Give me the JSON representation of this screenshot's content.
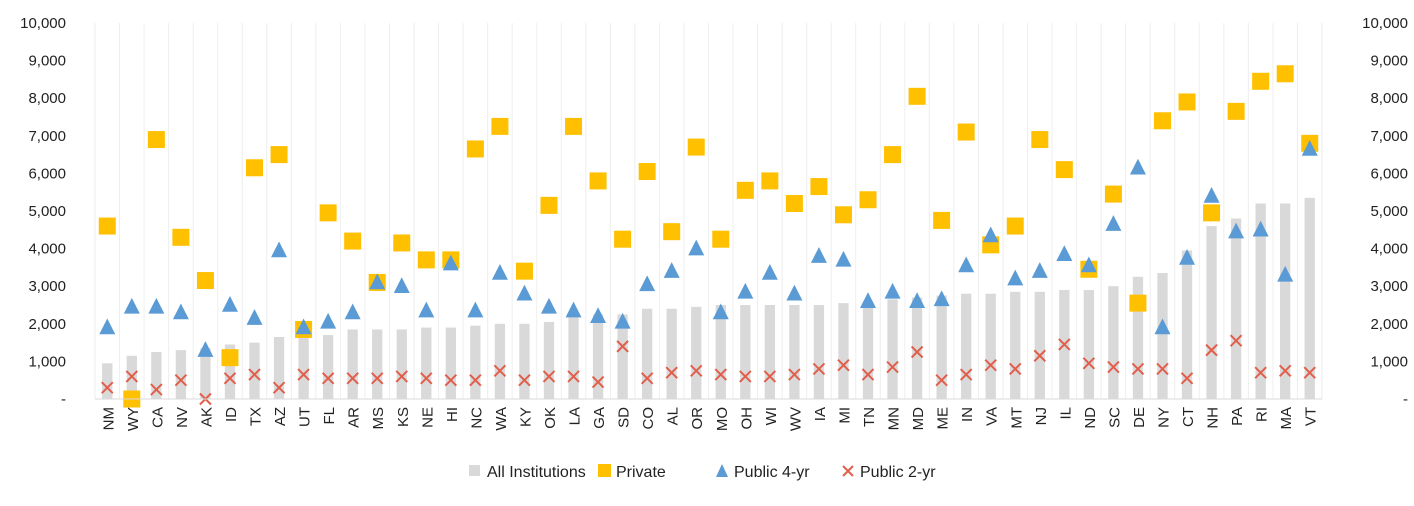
{
  "chart_data": {
    "type": "bar",
    "title": "",
    "xlabel": "",
    "ylabel": "",
    "ylim": [
      0,
      10000
    ],
    "y_ticks": [
      0,
      1000,
      2000,
      3000,
      4000,
      5000,
      6000,
      7000,
      8000,
      9000,
      10000
    ],
    "y_tick_labels": [
      "-",
      "1,000",
      "2,000",
      "3,000",
      "4,000",
      "5,000",
      "6,000",
      "7,000",
      "8,000",
      "9,000",
      "10,000"
    ],
    "secondary_axis_mirrored": true,
    "grid": "none",
    "legend_position": "bottom",
    "categories": [
      "NM",
      "WY",
      "CA",
      "NV",
      "AK",
      "ID",
      "TX",
      "AZ",
      "UT",
      "FL",
      "AR",
      "MS",
      "KS",
      "NE",
      "HI",
      "NC",
      "WA",
      "KY",
      "OK",
      "LA",
      "GA",
      "SD",
      "CO",
      "AL",
      "OR",
      "MO",
      "OH",
      "WI",
      "WV",
      "IA",
      "MI",
      "TN",
      "MN",
      "MD",
      "ME",
      "IN",
      "VA",
      "MT",
      "NJ",
      "IL",
      "ND",
      "SC",
      "DE",
      "NY",
      "CT",
      "NH",
      "PA",
      "RI",
      "MA",
      "VT"
    ],
    "series": [
      {
        "name": "All Institutions",
        "type": "bar",
        "color": "#d9d9d9",
        "values": [
          950,
          1150,
          1250,
          1300,
          1350,
          1450,
          1500,
          1650,
          1700,
          1700,
          1850,
          1850,
          1850,
          1900,
          1900,
          1950,
          2000,
          2000,
          2050,
          2200,
          2250,
          2250,
          2400,
          2400,
          2450,
          2500,
          2500,
          2500,
          2500,
          2500,
          2550,
          2600,
          2650,
          2700,
          2750,
          2800,
          2800,
          2850,
          2850,
          2900,
          2900,
          3000,
          3250,
          3350,
          3950,
          4600,
          4800,
          5200,
          5200,
          5350
        ]
      },
      {
        "name": "Private",
        "type": "marker",
        "marker": "square",
        "color": "#ffc000",
        "values": [
          4600,
          0,
          6900,
          4300,
          3150,
          1100,
          6150,
          6500,
          1850,
          4950,
          4200,
          3100,
          4150,
          3700,
          3700,
          6650,
          7250,
          3400,
          5150,
          7250,
          5800,
          4250,
          6050,
          4450,
          6700,
          4250,
          5550,
          5800,
          5200,
          5650,
          4900,
          5300,
          6500,
          8050,
          4750,
          7100,
          4100,
          4600,
          6900,
          6100,
          3450,
          5450,
          2550,
          7400,
          7900,
          4950,
          7650,
          8450,
          8650,
          6800
        ]
      },
      {
        "name": "Public 4-yr",
        "type": "marker",
        "marker": "triangle",
        "color": "#5b9bd5",
        "values": [
          1900,
          2450,
          2450,
          2300,
          1300,
          2500,
          2150,
          3950,
          1900,
          2050,
          2300,
          3100,
          3000,
          2350,
          3600,
          2350,
          3350,
          2800,
          2450,
          2350,
          2200,
          2050,
          3050,
          3400,
          4000,
          2300,
          2850,
          3350,
          2800,
          3800,
          3700,
          2600,
          2850,
          2600,
          2650,
          3550,
          4350,
          3200,
          3400,
          3850,
          3550,
          4650,
          6150,
          1900,
          3750,
          5400,
          4450,
          4500,
          3300,
          6650
        ]
      },
      {
        "name": "Public 2-yr",
        "type": "marker",
        "marker": "x",
        "color": "#e15e4b",
        "values": [
          300,
          600,
          250,
          500,
          0,
          550,
          650,
          300,
          650,
          550,
          550,
          550,
          600,
          550,
          500,
          500,
          750,
          500,
          600,
          600,
          450,
          1400,
          550,
          700,
          750,
          650,
          600,
          600,
          650,
          800,
          900,
          650,
          850,
          1250,
          500,
          650,
          900,
          800,
          1150,
          1450,
          950,
          850,
          800,
          800,
          550,
          1300,
          1550,
          700,
          750,
          700
        ]
      }
    ]
  }
}
